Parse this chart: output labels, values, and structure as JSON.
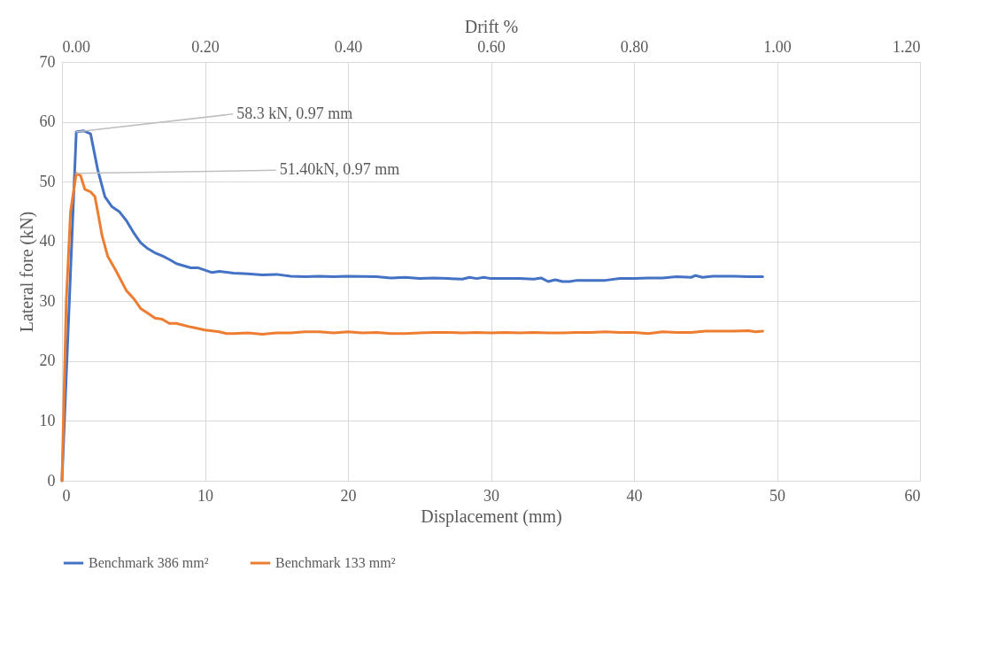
{
  "chart_data": {
    "type": "line",
    "xlabel": "Displacement (mm)",
    "ylabel": "Lateral fore (kN)",
    "x2label": "Drift %",
    "xlim": [
      0,
      60
    ],
    "xticks": [
      0,
      10,
      20,
      30,
      40,
      50,
      60
    ],
    "ylim": [
      0,
      70
    ],
    "yticks": [
      0,
      10,
      20,
      30,
      40,
      50,
      60,
      70
    ],
    "x2lim": [
      0,
      1.2
    ],
    "x2ticks": [
      {
        "value": 0,
        "label": "0.00"
      },
      {
        "value": 0.2,
        "label": "0.20"
      },
      {
        "value": 0.4,
        "label": "0.40"
      },
      {
        "value": 0.6,
        "label": "0.60"
      },
      {
        "value": 0.8,
        "label": "0.80"
      },
      {
        "value": 1.0,
        "label": "1.00"
      },
      {
        "value": 1.2,
        "label": "1.20"
      }
    ],
    "grid": true,
    "legend": "bottom",
    "marker": "none",
    "line_style": "solid",
    "annotations": [
      {
        "text": "58.3 kN, 0.97 mm",
        "x": 0.97,
        "y": 58.3
      },
      {
        "text": "51.40kN, 0.97 mm",
        "x": 0.97,
        "y": 51.4
      }
    ],
    "series": [
      {
        "name": "Benchmark 386 mm²",
        "color": "#4472c4",
        "x": [
          0,
          1,
          1.5,
          2,
          2.5,
          3,
          3.5,
          4,
          4.5,
          5,
          5.5,
          6,
          6.5,
          7,
          7.5,
          8,
          9,
          9.5,
          10.5,
          11,
          12,
          13,
          14,
          15,
          16,
          17,
          18,
          19,
          20,
          22,
          23,
          24,
          25,
          26,
          27,
          28,
          28.5,
          29,
          29.5,
          30,
          32,
          33,
          33.5,
          34,
          34.5,
          35,
          35.5,
          36,
          37,
          38,
          39,
          40,
          41,
          42,
          43,
          44,
          44.3,
          44.8,
          45.5,
          47,
          48,
          49
        ],
        "values": [
          0,
          58.3,
          58.5,
          58,
          52,
          47.5,
          45.8,
          45,
          43.5,
          41.5,
          39.8,
          38.8,
          38.1,
          37.6,
          37,
          36.3,
          35.6,
          35.6,
          34.8,
          35,
          34.7,
          34.6,
          34.4,
          34.5,
          34.2,
          34.1,
          34.2,
          34.1,
          34.2,
          34.1,
          33.9,
          34,
          33.8,
          33.9,
          33.8,
          33.7,
          34,
          33.8,
          34,
          33.8,
          33.8,
          33.7,
          33.9,
          33.3,
          33.6,
          33.3,
          33.3,
          33.5,
          33.5,
          33.5,
          33.8,
          33.8,
          33.9,
          33.9,
          34.1,
          34,
          34.3,
          34,
          34.2,
          34.2,
          34.1,
          34.1
        ]
      },
      {
        "name": "Benchmark 133 mm²",
        "color": "#ed7d31",
        "x": [
          0,
          0.3,
          0.6,
          1,
          1.3,
          1.6,
          2,
          2.3,
          2.5,
          2.8,
          3.2,
          3.8,
          4.5,
          5,
          5.5,
          6,
          6.5,
          7,
          7.5,
          8,
          9,
          10,
          11,
          11.5,
          12,
          13,
          14,
          15,
          16,
          17,
          18,
          19,
          20,
          21,
          22,
          23,
          24,
          25,
          26,
          27,
          28,
          29,
          30,
          31,
          32,
          33,
          34,
          35,
          36,
          37,
          38,
          39,
          40,
          41,
          42,
          43,
          44,
          45,
          46,
          47,
          48,
          48.5,
          49
        ],
        "values": [
          0,
          30,
          45,
          51.4,
          51,
          48.7,
          48.3,
          47.5,
          45,
          41,
          37.5,
          35,
          31.8,
          30.5,
          28.8,
          28,
          27.2,
          27,
          26.3,
          26.3,
          25.7,
          25.2,
          24.9,
          24.6,
          24.6,
          24.7,
          24.5,
          24.7,
          24.7,
          24.9,
          24.9,
          24.7,
          24.9,
          24.7,
          24.8,
          24.6,
          24.6,
          24.7,
          24.8,
          24.8,
          24.7,
          24.8,
          24.7,
          24.8,
          24.7,
          24.8,
          24.7,
          24.7,
          24.8,
          24.8,
          24.9,
          24.8,
          24.8,
          24.6,
          24.9,
          24.8,
          24.8,
          25,
          25,
          25,
          25.1,
          24.9,
          25
        ]
      }
    ]
  }
}
